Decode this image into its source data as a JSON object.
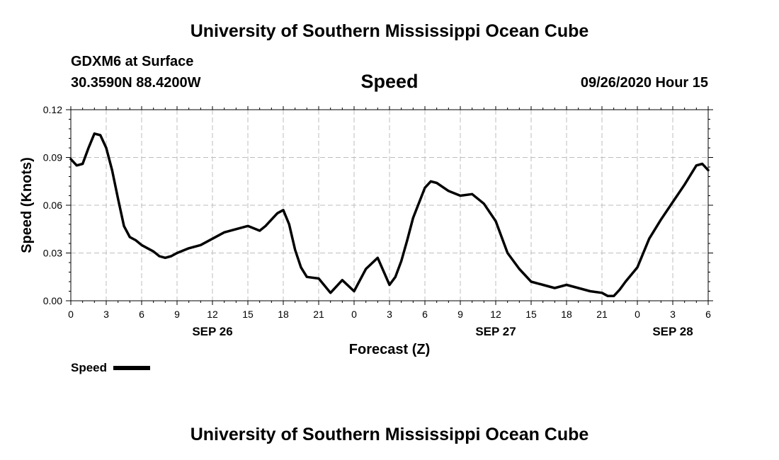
{
  "header": {
    "org_title": "University of Southern Mississippi Ocean Cube",
    "station": "GDXM6 at Surface",
    "location": "30.3590N 88.4200W",
    "variable": "Speed",
    "datetime": "09/26/2020 Hour 15"
  },
  "footer": {
    "org_title": "University of Southern Mississippi Ocean Cube"
  },
  "chart_data": {
    "type": "line",
    "title": "Speed",
    "xlabel": "Forecast (Z)",
    "ylabel": "Speed (Knots)",
    "x_unit": "hours since SEP 26 00Z",
    "xlim": [
      0,
      54
    ],
    "ylim": [
      0,
      0.12
    ],
    "yticks": [
      {
        "value": 0.0,
        "label": "0.00"
      },
      {
        "value": 0.03,
        "label": "0.03"
      },
      {
        "value": 0.06,
        "label": "0.06"
      },
      {
        "value": 0.09,
        "label": "0.09"
      },
      {
        "value": 0.12,
        "label": "0.12"
      }
    ],
    "xticks": [
      {
        "value": 0,
        "label": "0"
      },
      {
        "value": 3,
        "label": "3"
      },
      {
        "value": 6,
        "label": "6"
      },
      {
        "value": 9,
        "label": "9"
      },
      {
        "value": 12,
        "label": "12"
      },
      {
        "value": 15,
        "label": "15"
      },
      {
        "value": 18,
        "label": "18"
      },
      {
        "value": 21,
        "label": "21"
      },
      {
        "value": 24,
        "label": "0"
      },
      {
        "value": 27,
        "label": "3"
      },
      {
        "value": 30,
        "label": "6"
      },
      {
        "value": 33,
        "label": "9"
      },
      {
        "value": 36,
        "label": "12"
      },
      {
        "value": 39,
        "label": "15"
      },
      {
        "value": 42,
        "label": "18"
      },
      {
        "value": 45,
        "label": "21"
      },
      {
        "value": 48,
        "label": "0"
      },
      {
        "value": 51,
        "label": "3"
      },
      {
        "value": 54,
        "label": "6"
      }
    ],
    "date_labels": [
      {
        "value": 12,
        "label": "SEP 26"
      },
      {
        "value": 36,
        "label": "SEP 27"
      },
      {
        "value": 51,
        "label": "SEP 28"
      }
    ],
    "grid": true,
    "legend": {
      "label": "Speed",
      "position": "bottom-left"
    },
    "series": [
      {
        "name": "Speed",
        "color": "#000000",
        "x": [
          0,
          0.5,
          1,
          1.5,
          2,
          2.5,
          3,
          3.5,
          4,
          4.5,
          5,
          5.5,
          6,
          6.5,
          7,
          7.5,
          8,
          8.5,
          9,
          10,
          11,
          12,
          13,
          14,
          15,
          16,
          16.5,
          17,
          17.5,
          18,
          18.5,
          19,
          19.5,
          20,
          21,
          22,
          23,
          24,
          25,
          26,
          27,
          27.5,
          28,
          28.5,
          29,
          30,
          30.5,
          31,
          32,
          33,
          34,
          35,
          36,
          37,
          38,
          39,
          40,
          41,
          42,
          43,
          44,
          45,
          45.5,
          46,
          46.5,
          47,
          48,
          49,
          50,
          51,
          52,
          53,
          53.5,
          54
        ],
        "y": [
          0.089,
          0.085,
          0.086,
          0.096,
          0.105,
          0.104,
          0.096,
          0.082,
          0.064,
          0.047,
          0.04,
          0.038,
          0.035,
          0.033,
          0.031,
          0.028,
          0.027,
          0.028,
          0.03,
          0.033,
          0.035,
          0.039,
          0.043,
          0.045,
          0.047,
          0.044,
          0.047,
          0.051,
          0.055,
          0.057,
          0.048,
          0.032,
          0.021,
          0.015,
          0.014,
          0.005,
          0.013,
          0.006,
          0.02,
          0.027,
          0.01,
          0.015,
          0.025,
          0.038,
          0.052,
          0.071,
          0.075,
          0.074,
          0.069,
          0.066,
          0.067,
          0.061,
          0.05,
          0.03,
          0.02,
          0.012,
          0.01,
          0.008,
          0.01,
          0.008,
          0.006,
          0.005,
          0.003,
          0.003,
          0.007,
          0.012,
          0.021,
          0.039,
          0.051,
          0.062,
          0.073,
          0.085,
          0.086,
          0.082
        ]
      }
    ]
  }
}
